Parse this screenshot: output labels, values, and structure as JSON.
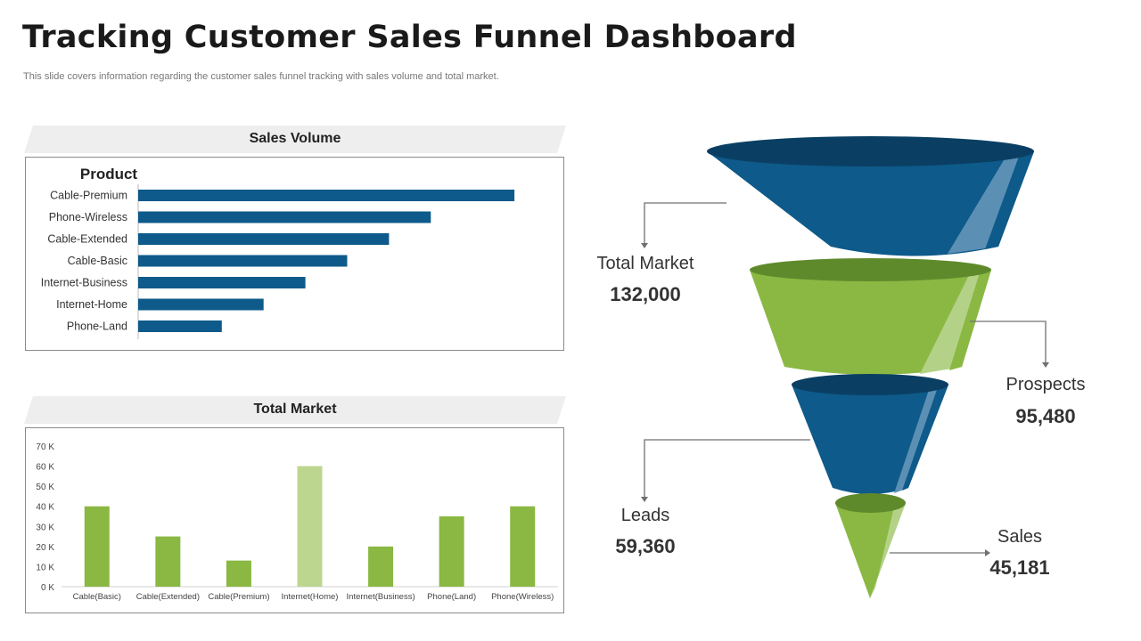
{
  "header": {
    "title": "Tracking Customer Sales Funnel Dashboard",
    "subtitle": "This slide covers information regarding the customer sales funnel tracking with sales volume and total market."
  },
  "colors": {
    "blue": "#0e5a8a",
    "green": "#8ab843",
    "light_green": "#bcd68f",
    "band_grey": "#eeeeee"
  },
  "chart_data": [
    {
      "type": "bar",
      "orientation": "horizontal",
      "title": "Sales Volume",
      "ylabel": "Product",
      "categories": [
        "Cable-Premium",
        "Phone-Wireless",
        "Cable-Extended",
        "Cable-Basic",
        "Internet-Business",
        "Internet-Home",
        "Phone-Land"
      ],
      "values": [
        90,
        70,
        60,
        50,
        40,
        30,
        20
      ],
      "xlim": [
        0,
        100
      ],
      "grid": false,
      "color": "#0e5a8a"
    },
    {
      "type": "bar",
      "title": "Total Market",
      "categories": [
        "Cable(Basic)",
        "Cable(Extended)",
        "Cable(Premium)",
        "Internet(Home)",
        "Internet(Business)",
        "Phone(Land)",
        "Phone(Wireless)"
      ],
      "values": [
        40000,
        25000,
        13000,
        60000,
        20000,
        35000,
        40000
      ],
      "highlight_index": 3,
      "ylim": [
        0,
        70000
      ],
      "yticks": [
        "0 K",
        "10 K",
        "20 K",
        "30 K",
        "40 K",
        "50 K",
        "60 K",
        "70 K"
      ],
      "grid": false,
      "color": "#8ab843",
      "highlight_color": "#bcd68f"
    },
    {
      "type": "funnel",
      "stages": [
        {
          "name": "Total Market",
          "value": 132000,
          "label": "132,000"
        },
        {
          "name": "Prospects",
          "value": 95480,
          "label": "95,480"
        },
        {
          "name": "Leads",
          "value": 59360,
          "label": "59,360"
        },
        {
          "name": "Sales",
          "value": 45181,
          "label": "45,181"
        }
      ]
    }
  ]
}
